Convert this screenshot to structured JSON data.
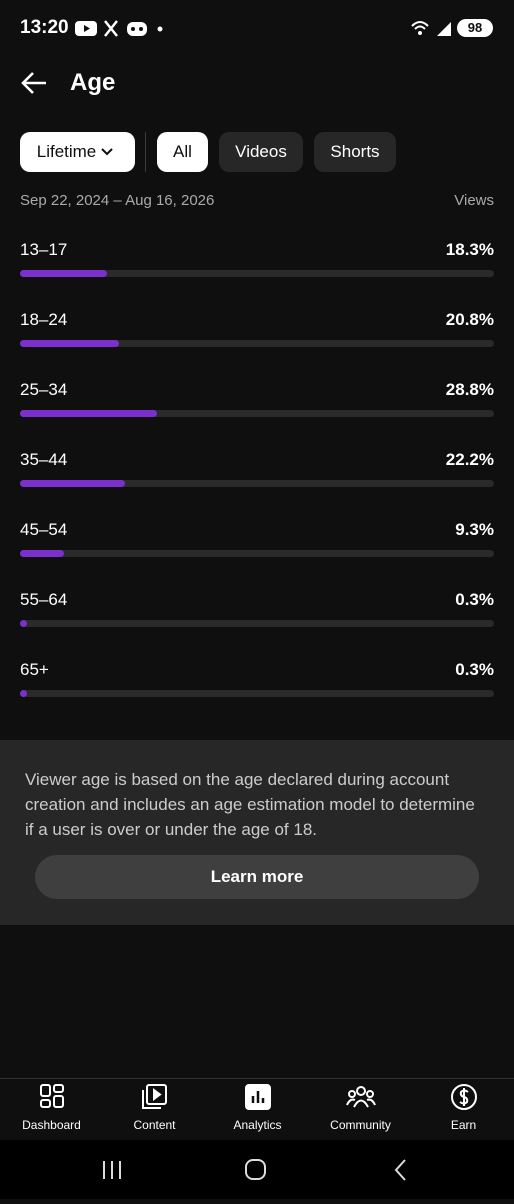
{
  "status_bar": {
    "time": "13:20",
    "battery": "98"
  },
  "header": {
    "title": "Age"
  },
  "filters": {
    "period": "Lifetime",
    "tabs": [
      "All",
      "Videos",
      "Shorts"
    ]
  },
  "date_range": "Sep 22, 2024 – Aug 16, 2026",
  "metric": "Views",
  "age_breakdown": {
    "categories": [
      "13–17",
      "18–24",
      "25–34",
      "35–44",
      "45–54",
      "55–64",
      "65+"
    ],
    "values": [
      18.3,
      20.8,
      28.8,
      22.2,
      9.3,
      0.3,
      0.3
    ],
    "value_labels": [
      "18.3%",
      "20.8%",
      "28.8%",
      "22.2%",
      "9.3%",
      "0.3%",
      "0.3%"
    ],
    "xlim": [
      0,
      100
    ],
    "color": "#7b2fcc"
  },
  "info": {
    "text": "Viewer age is based on the age declared during account creation and includes an age estimation model to determine if a user is over or under the age of 18.",
    "button": "Learn more"
  },
  "bottom_nav": [
    "Dashboard",
    "Content",
    "Analytics",
    "Community",
    "Earn"
  ]
}
